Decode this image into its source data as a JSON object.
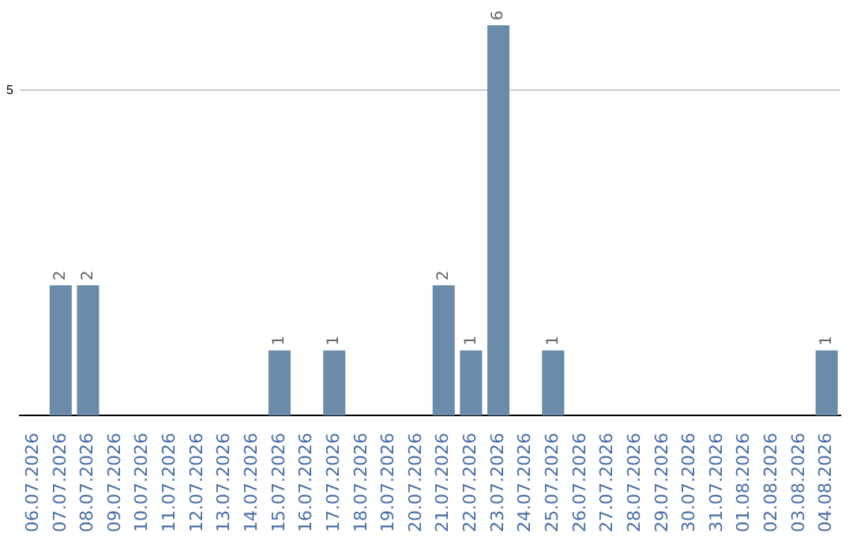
{
  "chart_data": {
    "type": "bar",
    "categories": [
      "06.07.2026",
      "07.07.2026",
      "08.07.2026",
      "09.07.2026",
      "10.07.2026",
      "11.07.2026",
      "12.07.2026",
      "13.07.2026",
      "14.07.2026",
      "15.07.2026",
      "16.07.2026",
      "17.07.2026",
      "18.07.2026",
      "19.07.2026",
      "20.07.2026",
      "21.07.2026",
      "22.07.2026",
      "23.07.2026",
      "24.07.2026",
      "25.07.2026",
      "26.07.2026",
      "27.07.2026",
      "28.07.2026",
      "29.07.2026",
      "30.07.2026",
      "31.07.2026",
      "01.08.2026",
      "02.08.2026",
      "03.08.2026",
      "04.08.2026"
    ],
    "values": [
      0,
      2,
      2,
      0,
      0,
      0,
      0,
      0,
      0,
      1,
      0,
      1,
      0,
      0,
      0,
      2,
      1,
      6,
      0,
      1,
      0,
      0,
      0,
      0,
      0,
      0,
      0,
      0,
      0,
      1
    ],
    "color": "#6b8bab",
    "value_labels": [
      null,
      "2",
      "2",
      null,
      null,
      null,
      null,
      null,
      null,
      "1",
      null,
      "1",
      null,
      null,
      null,
      "2",
      "1",
      "6",
      null,
      "1",
      null,
      null,
      null,
      null,
      null,
      null,
      null,
      null,
      null,
      "1"
    ],
    "ylim": [
      0,
      6
    ],
    "yticks": [
      5
    ],
    "grid": "y",
    "legend": false
  }
}
